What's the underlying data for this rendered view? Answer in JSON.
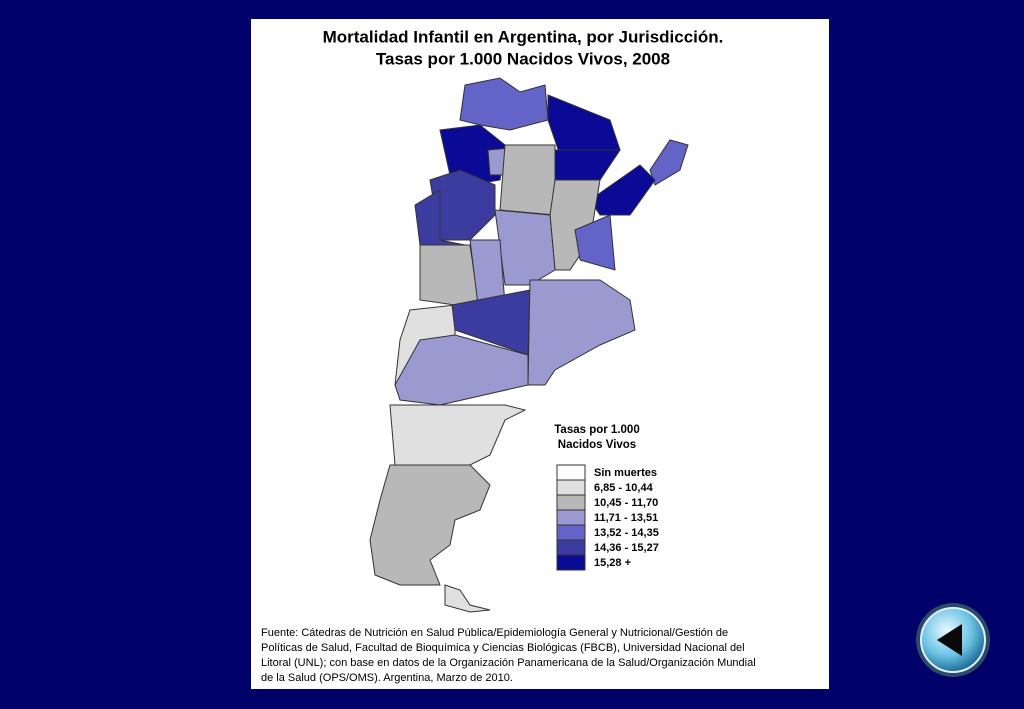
{
  "title": [
    "Mortalidad Infantil en Argentina, por Jurisdicción.",
    "Tasas por 1.000 Nacidos Vivos, 2008"
  ],
  "legend": {
    "title": [
      "Tasas por 1.000",
      "Nacidos Vivos"
    ],
    "items": [
      {
        "label": "Sin muertes",
        "color": "#ffffff"
      },
      {
        "label": "6,85 - 10,44",
        "color": "#e0e0e0"
      },
      {
        "label": "10,45 - 11,70",
        "color": "#b8b8b8"
      },
      {
        "label": "11,71 - 13,51",
        "color": "#9a9ad0"
      },
      {
        "label": "13,52 - 14,35",
        "color": "#6464c8"
      },
      {
        "label": "14,36 - 15,27",
        "color": "#3c3ca0"
      },
      {
        "label": "15,28 +",
        "color": "#0a0a96"
      }
    ]
  },
  "source": [
    "Fuente: Cátedras de Nutrición en Salud Pública/Epidemiología General y Nutricional/Gestión de",
    "Políticas de Salud, Facultad de Bioquímica y Ciencias Biológicas (FBCB), Universidad Nacional del",
    "Litoral (UNL); con base en datos de la  Organización Panamericana de la Salud/Organización Mundial",
    "de la Salud (OPS/OMS).  Argentina, Marzo de 2010."
  ]
}
